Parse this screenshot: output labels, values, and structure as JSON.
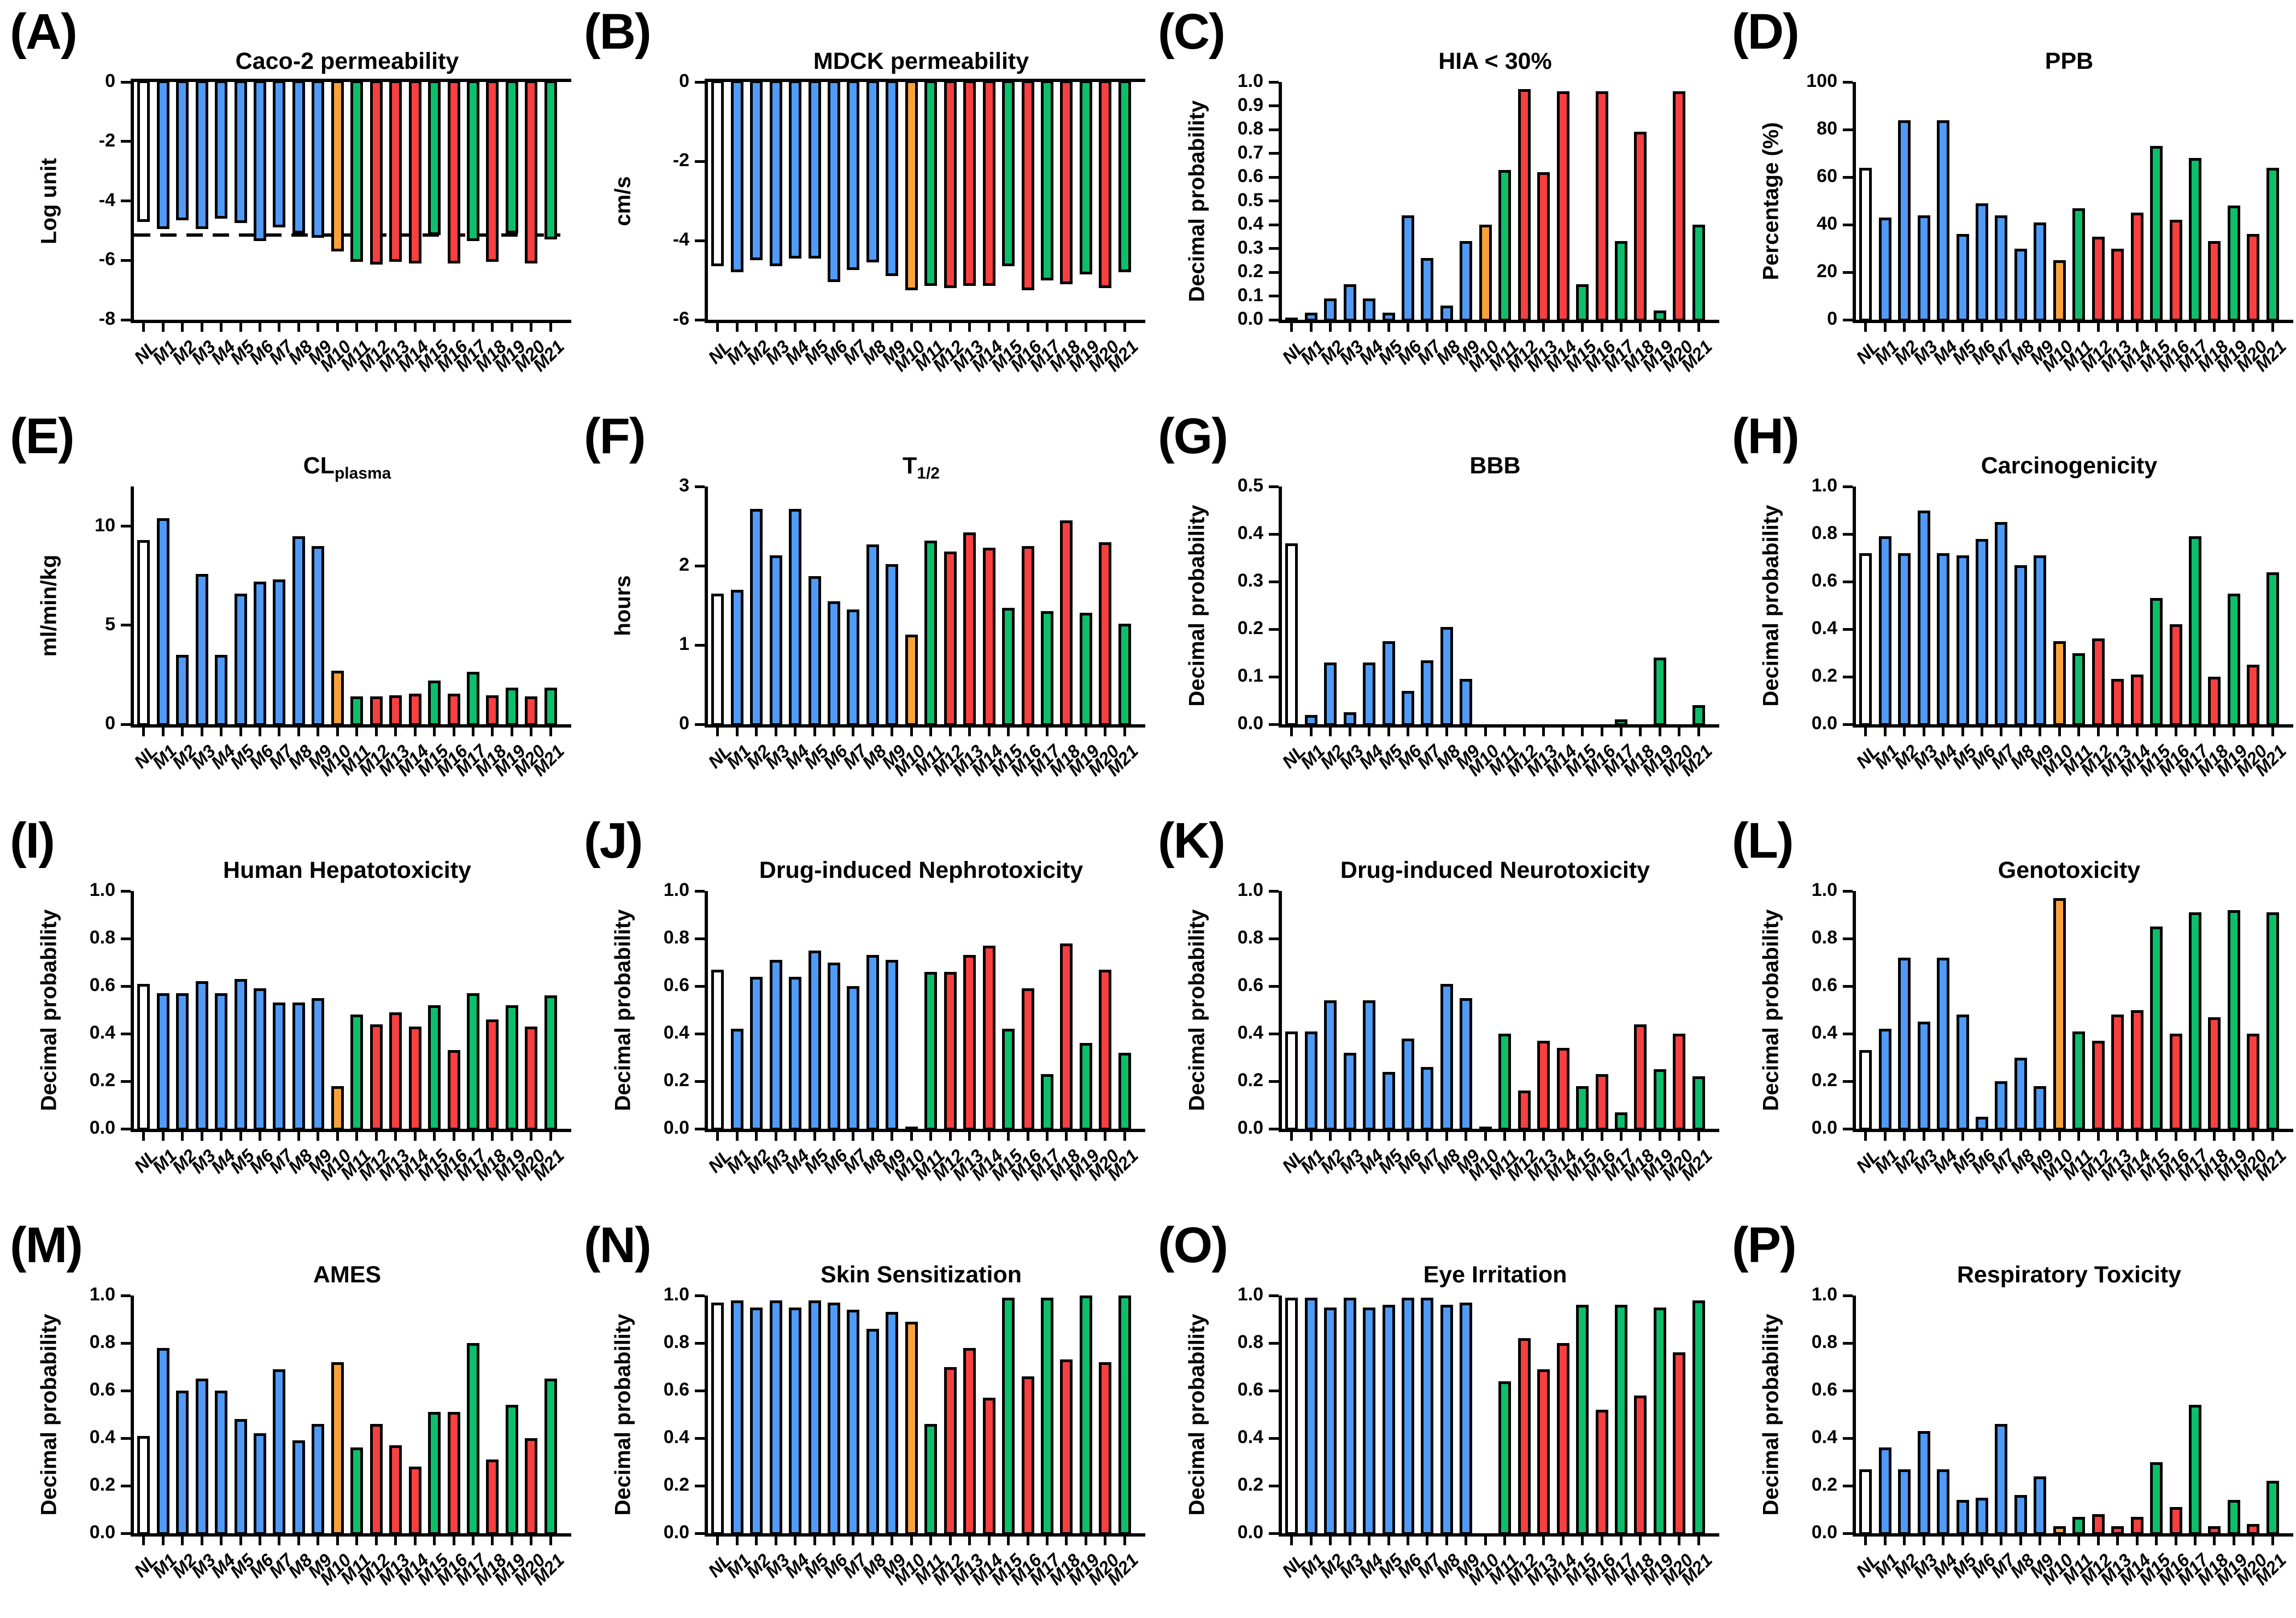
{
  "figure_title": "ADMET property panel figure",
  "palette": {
    "white": "#FFFFFF",
    "blue": "#4F9BF7",
    "orange": "#F9A23B",
    "green": "#0DBE6B",
    "red": "#F84040",
    "outline": "#000000"
  },
  "categories": [
    "NL",
    "M1",
    "M2",
    "M3",
    "M4",
    "M5",
    "M6",
    "M7",
    "M8",
    "M9",
    "M10",
    "M11",
    "M12",
    "M13",
    "M14",
    "M15",
    "M16",
    "M17",
    "M18",
    "M19",
    "M20",
    "M21"
  ],
  "color_pattern": [
    "white",
    "blue",
    "blue",
    "blue",
    "blue",
    "blue",
    "blue",
    "blue",
    "blue",
    "blue",
    "orange",
    "green",
    "red",
    "red",
    "red",
    "green",
    "red",
    "green",
    "red",
    "green",
    "red",
    "green"
  ],
  "chart_data": [
    {
      "panel_label": "(A)",
      "type": "bar",
      "title": "Caco-2 permeability",
      "title_sub": null,
      "ylabel": "Log unit",
      "ylim": [
        -8,
        0
      ],
      "yticks": [
        0,
        -2,
        -4,
        -6,
        -8
      ],
      "tick_format": "int",
      "dashline": -5.15,
      "grid": false,
      "values": [
        -4.7,
        -4.95,
        -4.65,
        -4.95,
        -4.6,
        -4.75,
        -5.35,
        -4.9,
        -5.1,
        -5.25,
        -5.7,
        -6.05,
        -6.15,
        -6.05,
        -6.1,
        -5.15,
        -6.1,
        -5.35,
        -6.05,
        -5.1,
        -6.1,
        -5.3
      ]
    },
    {
      "panel_label": "(B)",
      "type": "bar",
      "title": "MDCK permeability",
      "title_sub": null,
      "ylabel": "cm/s",
      "ylim": [
        -6,
        0
      ],
      "yticks": [
        0,
        -2,
        -4,
        -6
      ],
      "tick_format": "int",
      "dashline": null,
      "grid": false,
      "values": [
        -4.65,
        -4.8,
        -4.5,
        -4.65,
        -4.45,
        -4.45,
        -5.05,
        -4.75,
        -4.55,
        -4.9,
        -5.25,
        -5.15,
        -5.2,
        -5.15,
        -5.15,
        -4.65,
        -5.25,
        -5.0,
        -5.1,
        -4.85,
        -5.2,
        -4.8
      ]
    },
    {
      "panel_label": "(C)",
      "type": "bar",
      "title": "HIA < 30%",
      "title_sub": null,
      "ylabel": "Decimal probability",
      "ylim": [
        0,
        1
      ],
      "yticks": [
        0,
        0.1,
        0.2,
        0.3,
        0.4,
        0.5,
        0.6,
        0.7,
        0.8,
        0.9,
        1.0
      ],
      "tick_format": "1dp",
      "dashline": null,
      "grid": false,
      "values": [
        0.01,
        0.03,
        0.09,
        0.15,
        0.09,
        0.03,
        0.44,
        0.26,
        0.06,
        0.33,
        0.4,
        0.63,
        0.97,
        0.62,
        0.96,
        0.15,
        0.96,
        0.33,
        0.79,
        0.04,
        0.96,
        0.4
      ]
    },
    {
      "panel_label": "(D)",
      "type": "bar",
      "title": "PPB",
      "title_sub": null,
      "ylabel": "Percentage (%)",
      "ylim": [
        0,
        100
      ],
      "yticks": [
        0,
        20,
        40,
        60,
        80,
        100
      ],
      "tick_format": "int",
      "dashline": null,
      "grid": false,
      "values": [
        64,
        43,
        84,
        44,
        84,
        36,
        49,
        44,
        30,
        41,
        25,
        47,
        35,
        30,
        45,
        73,
        42,
        68,
        33,
        48,
        36,
        64
      ]
    },
    {
      "panel_label": "(E)",
      "type": "bar",
      "title": "CL",
      "title_sub": "plasma",
      "ylabel": "ml/min/kg",
      "ylim": [
        0,
        12
      ],
      "yticks": [
        0,
        5,
        10
      ],
      "tick_format": "int",
      "dashline": null,
      "grid": false,
      "values": [
        9.3,
        10.4,
        3.5,
        7.6,
        3.5,
        6.6,
        7.2,
        7.3,
        9.5,
        9.0,
        2.7,
        1.4,
        1.4,
        1.45,
        1.55,
        2.2,
        1.55,
        2.65,
        1.45,
        1.85,
        1.4,
        1.85
      ]
    },
    {
      "panel_label": "(F)",
      "type": "bar",
      "title": "T",
      "title_sub": "1/2",
      "ylabel": "hours",
      "ylim": [
        0,
        3
      ],
      "yticks": [
        0,
        1,
        2,
        3
      ],
      "tick_format": "int",
      "dashline": null,
      "grid": false,
      "values": [
        1.65,
        1.7,
        2.72,
        2.13,
        2.72,
        1.87,
        1.55,
        1.45,
        2.27,
        2.02,
        1.13,
        2.32,
        2.18,
        2.42,
        2.23,
        1.47,
        2.25,
        1.43,
        2.57,
        1.41,
        2.3,
        1.27
      ]
    },
    {
      "panel_label": "(G)",
      "type": "bar",
      "title": "BBB",
      "title_sub": null,
      "ylabel": "Decimal probability",
      "ylim": [
        0,
        0.5
      ],
      "yticks": [
        0,
        0.1,
        0.2,
        0.3,
        0.4,
        0.5
      ],
      "tick_format": "1dp",
      "dashline": null,
      "grid": false,
      "values": [
        0.38,
        0.02,
        0.13,
        0.025,
        0.13,
        0.175,
        0.07,
        0.135,
        0.205,
        0.095,
        0,
        0,
        0,
        0,
        0,
        0,
        0,
        0.01,
        0,
        0.14,
        0,
        0.04
      ]
    },
    {
      "panel_label": "(H)",
      "type": "bar",
      "title": "Carcinogenicity",
      "title_sub": null,
      "ylabel": "Decimal probability",
      "ylim": [
        0,
        1
      ],
      "yticks": [
        0,
        0.2,
        0.4,
        0.6,
        0.8,
        1.0
      ],
      "tick_format": "1dp",
      "dashline": null,
      "grid": false,
      "values": [
        0.72,
        0.79,
        0.72,
        0.9,
        0.72,
        0.71,
        0.78,
        0.85,
        0.67,
        0.71,
        0.35,
        0.3,
        0.36,
        0.19,
        0.21,
        0.53,
        0.42,
        0.79,
        0.2,
        0.55,
        0.25,
        0.64
      ]
    },
    {
      "panel_label": "(I)",
      "type": "bar",
      "title": "Human Hepatotoxicity",
      "title_sub": null,
      "ylabel": "Decimal probability",
      "ylim": [
        0,
        1
      ],
      "yticks": [
        0,
        0.2,
        0.4,
        0.6,
        0.8,
        1.0
      ],
      "tick_format": "1dp",
      "dashline": null,
      "grid": false,
      "values": [
        0.61,
        0.57,
        0.57,
        0.62,
        0.57,
        0.63,
        0.59,
        0.53,
        0.53,
        0.55,
        0.18,
        0.48,
        0.44,
        0.49,
        0.43,
        0.52,
        0.33,
        0.57,
        0.46,
        0.52,
        0.43,
        0.56
      ]
    },
    {
      "panel_label": "(J)",
      "type": "bar",
      "title": "Drug-induced Nephrotoxicity",
      "title_sub": null,
      "ylabel": "Decimal probability",
      "ylim": [
        0,
        1
      ],
      "yticks": [
        0,
        0.2,
        0.4,
        0.6,
        0.8,
        1.0
      ],
      "tick_format": "1dp",
      "dashline": null,
      "grid": false,
      "values": [
        0.67,
        0.42,
        0.64,
        0.71,
        0.64,
        0.75,
        0.7,
        0.6,
        0.73,
        0.71,
        0.01,
        0.66,
        0.66,
        0.73,
        0.77,
        0.42,
        0.59,
        0.23,
        0.78,
        0.36,
        0.67,
        0.32
      ]
    },
    {
      "panel_label": "(K)",
      "type": "bar",
      "title": "Drug-induced Neurotoxicity",
      "title_sub": null,
      "ylabel": "Decimal probability",
      "ylim": [
        0,
        1
      ],
      "yticks": [
        0,
        0.2,
        0.4,
        0.6,
        0.8,
        1.0
      ],
      "tick_format": "1dp",
      "dashline": null,
      "grid": false,
      "values": [
        0.41,
        0.41,
        0.54,
        0.32,
        0.54,
        0.24,
        0.38,
        0.26,
        0.61,
        0.55,
        0.01,
        0.4,
        0.16,
        0.37,
        0.34,
        0.18,
        0.23,
        0.07,
        0.44,
        0.25,
        0.4,
        0.22
      ]
    },
    {
      "panel_label": "(L)",
      "type": "bar",
      "title": "Genotoxicity",
      "title_sub": null,
      "ylabel": "Decimal probability",
      "ylim": [
        0,
        1
      ],
      "yticks": [
        0,
        0.2,
        0.4,
        0.6,
        0.8,
        1.0
      ],
      "tick_format": "1dp",
      "dashline": null,
      "grid": false,
      "values": [
        0.33,
        0.42,
        0.72,
        0.45,
        0.72,
        0.48,
        0.05,
        0.2,
        0.3,
        0.18,
        0.97,
        0.41,
        0.37,
        0.48,
        0.5,
        0.85,
        0.4,
        0.91,
        0.47,
        0.92,
        0.4,
        0.91
      ]
    },
    {
      "panel_label": "(M)",
      "type": "bar",
      "title": "AMES",
      "title_sub": null,
      "ylabel": "Decimal probability",
      "ylim": [
        0,
        1
      ],
      "yticks": [
        0,
        0.2,
        0.4,
        0.6,
        0.8,
        1.0
      ],
      "tick_format": "1dp",
      "dashline": null,
      "grid": false,
      "values": [
        0.41,
        0.78,
        0.6,
        0.65,
        0.6,
        0.48,
        0.42,
        0.69,
        0.39,
        0.46,
        0.72,
        0.36,
        0.46,
        0.37,
        0.28,
        0.51,
        0.51,
        0.8,
        0.31,
        0.54,
        0.4,
        0.65
      ]
    },
    {
      "panel_label": "(N)",
      "type": "bar",
      "title": "Skin Sensitization",
      "title_sub": null,
      "ylabel": "Decimal probability",
      "ylim": [
        0,
        1
      ],
      "yticks": [
        0,
        0.2,
        0.4,
        0.6,
        0.8,
        1.0
      ],
      "tick_format": "1dp",
      "dashline": null,
      "grid": false,
      "values": [
        0.97,
        0.98,
        0.95,
        0.98,
        0.95,
        0.98,
        0.97,
        0.94,
        0.86,
        0.93,
        0.89,
        0.46,
        0.7,
        0.78,
        0.57,
        0.99,
        0.66,
        0.99,
        0.73,
        1.0,
        0.72,
        1.0
      ]
    },
    {
      "panel_label": "(O)",
      "type": "bar",
      "title": "Eye Irritation",
      "title_sub": null,
      "ylabel": "Decimal probability",
      "ylim": [
        0,
        1
      ],
      "yticks": [
        0,
        0.2,
        0.4,
        0.6,
        0.8,
        1.0
      ],
      "tick_format": "1dp",
      "dashline": null,
      "grid": false,
      "values": [
        0.99,
        0.99,
        0.95,
        0.99,
        0.95,
        0.96,
        0.99,
        0.99,
        0.96,
        0.97,
        0,
        0.64,
        0.82,
        0.69,
        0.8,
        0.96,
        0.52,
        0.96,
        0.58,
        0.95,
        0.76,
        0.98
      ]
    },
    {
      "panel_label": "(P)",
      "type": "bar",
      "title": "Respiratory Toxicity",
      "title_sub": null,
      "ylabel": "Decimal probability",
      "ylim": [
        0,
        1
      ],
      "yticks": [
        0,
        0.2,
        0.4,
        0.6,
        0.8,
        1.0
      ],
      "tick_format": "1dp",
      "dashline": null,
      "grid": false,
      "values": [
        0.27,
        0.36,
        0.27,
        0.43,
        0.27,
        0.14,
        0.15,
        0.46,
        0.16,
        0.24,
        0.03,
        0.07,
        0.08,
        0.03,
        0.07,
        0.3,
        0.11,
        0.54,
        0.03,
        0.14,
        0.04,
        0.22
      ]
    }
  ]
}
